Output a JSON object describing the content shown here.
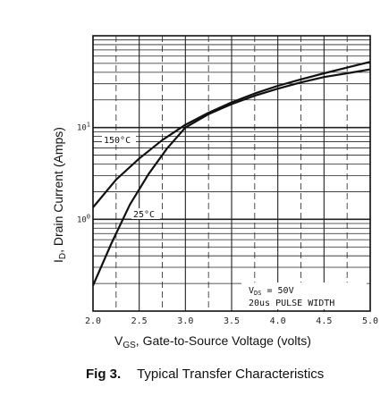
{
  "chart_data": {
    "type": "line",
    "title": "Typical Transfer Characteristics",
    "figure_label": "Fig 3.",
    "xlabel": "V",
    "xlabel_sub": "GS",
    "xlabel_rest": ", Gate-to-Source Voltage (volts)",
    "ylabel": "I",
    "ylabel_sub": "D",
    "ylabel_rest": ", Drain Current (Amps)",
    "x_scale": "linear",
    "y_scale": "log",
    "xlim": [
      2.0,
      5.0
    ],
    "ylim": [
      0.1,
      100
    ],
    "grid": true,
    "x_ticks": [
      {
        "value": 2.0,
        "label": "2.0"
      },
      {
        "value": 2.5,
        "label": "2.5"
      },
      {
        "value": 3.0,
        "label": "3.0"
      },
      {
        "value": 3.5,
        "label": "3.5"
      },
      {
        "value": 4.0,
        "label": "4.0"
      },
      {
        "value": 4.5,
        "label": "4.5"
      },
      {
        "value": 5.0,
        "label": "5.0"
      }
    ],
    "y_ticks": [
      {
        "value": 10,
        "label_base": "10",
        "label_exp": "1"
      },
      {
        "value": 1,
        "label_base": "10",
        "label_exp": "0"
      }
    ],
    "series": [
      {
        "name": "150°C",
        "x": [
          2.0,
          2.25,
          2.5,
          2.75,
          3.0,
          3.25,
          3.5,
          3.75,
          4.0,
          4.25,
          4.5,
          4.75,
          5.0
        ],
        "y": [
          1.35,
          2.7,
          4.6,
          7.3,
          10.7,
          14.5,
          18.8,
          23.5,
          28.5,
          33.5,
          39.0,
          45.0,
          52.0
        ]
      },
      {
        "name": "25°C",
        "x": [
          2.0,
          2.2,
          2.4,
          2.6,
          2.8,
          3.0,
          3.25,
          3.5,
          3.75,
          4.0,
          4.25,
          4.5,
          4.75,
          5.0
        ],
        "y": [
          0.19,
          0.55,
          1.45,
          3.1,
          5.9,
          10.0,
          14.0,
          18.0,
          22.2,
          26.5,
          31.0,
          35.5,
          39.0,
          43.0
        ]
      }
    ],
    "annotations": {
      "vds": "V",
      "vds_sub": "DS",
      "vds_rest": " = 50V",
      "pulse": "20us PULSE WIDTH"
    }
  }
}
